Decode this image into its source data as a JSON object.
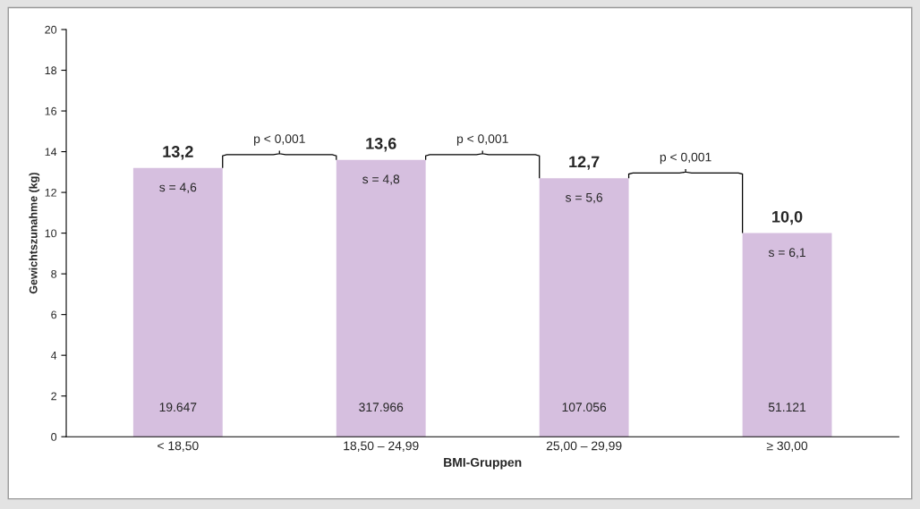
{
  "chart_data": {
    "type": "bar",
    "xlabel": "BMI-Gruppen",
    "ylabel": "Gewichtszunahme (kg)",
    "categories": [
      "< 18,50",
      "18,50 – 24,99",
      "25,00 – 29,99",
      "≥ 30,00"
    ],
    "values": [
      13.2,
      13.6,
      12.7,
      10.0
    ],
    "value_labels": [
      "13,2",
      "13,6",
      "12,7",
      "10,0"
    ],
    "color": "#d6bfdf",
    "ylim": [
      0,
      20
    ],
    "yticks": [
      0,
      2,
      4,
      6,
      8,
      10,
      12,
      14,
      16,
      18,
      20
    ],
    "grid": false,
    "annotations": [
      "s = 4,6",
      "s = 4,8",
      "s = 5,6",
      "s = 6,1",
      "19.647",
      "317.966",
      "107.056",
      "51.121",
      "p < 0,001",
      "p < 0,001",
      "p < 0,001"
    ]
  }
}
